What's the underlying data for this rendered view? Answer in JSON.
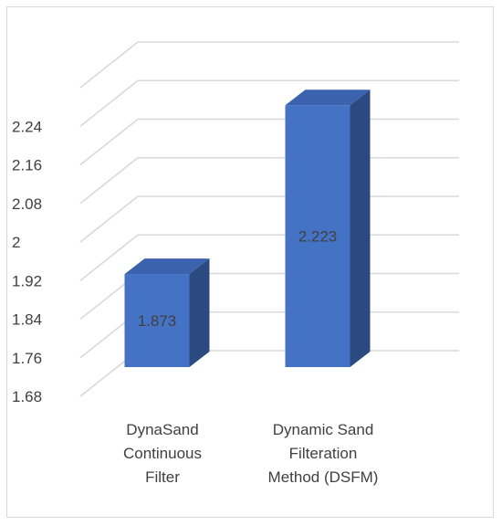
{
  "chart_data": {
    "type": "bar",
    "style": "3d-column",
    "categories": [
      [
        "DynaSand",
        "Continuous",
        "Filter"
      ],
      [
        "Dynamic Sand",
        "Filteration",
        "Method (DSFM)"
      ]
    ],
    "values": [
      1.873,
      2.223
    ],
    "value_labels": [
      "1.873",
      "2.223"
    ],
    "yticks": [
      "1.68",
      "1.76",
      "1.84",
      "1.92",
      "2",
      "2.08",
      "2.16",
      "2.24"
    ],
    "ylim": [
      1.68,
      2.32
    ],
    "grid": true,
    "legend": "none",
    "colors": {
      "front": "#4472c4",
      "top": "#3a62ad",
      "side": "#2b4a80",
      "grid": "#d9d9d9",
      "text": "#404040"
    }
  }
}
